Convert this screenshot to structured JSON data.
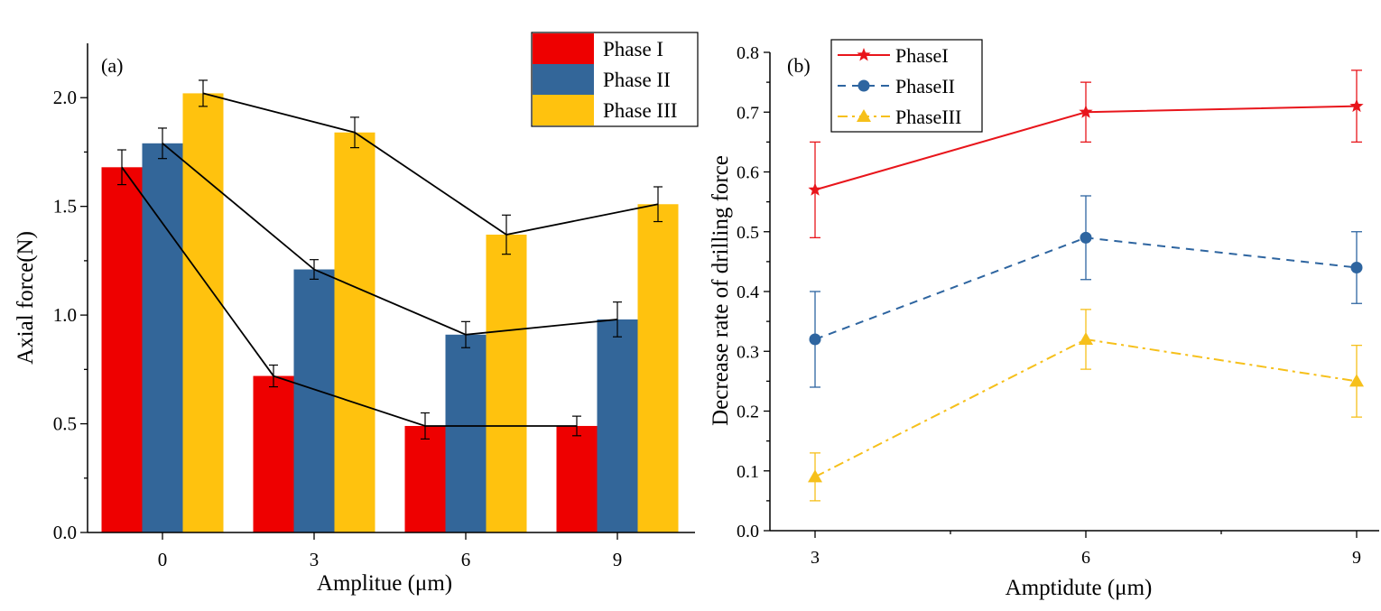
{
  "chart_data": [
    {
      "type": "bar",
      "panel_label": "(a)",
      "title": "",
      "xlabel": "Amplitue (μm)",
      "ylabel": "Axial force(N)",
      "categories": [
        "0",
        "3",
        "6",
        "9"
      ],
      "ylim": [
        0,
        2.25
      ],
      "yticks": [
        "0.0",
        "0.5",
        "1.0",
        "1.5",
        "2.0"
      ],
      "legend_position": "top-right",
      "series": [
        {
          "name": "Phase I",
          "color": "#ee0000",
          "values": [
            1.68,
            0.72,
            0.49,
            0.49
          ],
          "errors": [
            0.08,
            0.05,
            0.06,
            0.045
          ]
        },
        {
          "name": "Phase II",
          "color": "#336699",
          "values": [
            1.79,
            1.21,
            0.91,
            0.98
          ],
          "errors": [
            0.07,
            0.045,
            0.06,
            0.08
          ]
        },
        {
          "name": "Phase III",
          "color": "#ffc20e",
          "values": [
            2.02,
            1.84,
            1.37,
            1.51
          ],
          "errors": [
            0.06,
            0.07,
            0.09,
            0.08
          ]
        }
      ],
      "trend_lines": "connects each series' bar tops"
    },
    {
      "type": "line",
      "panel_label": "(b)",
      "title": "",
      "xlabel": "Amptidute (μm)",
      "ylabel": "Decrease rate of drilling force",
      "x": [
        3,
        6,
        9
      ],
      "xlim": [
        2.5,
        9.25
      ],
      "xticks": [
        "3",
        "6",
        "9"
      ],
      "ylim": [
        0,
        0.8
      ],
      "yticks": [
        "0.0",
        "0.1",
        "0.2",
        "0.3",
        "0.4",
        "0.5",
        "0.6",
        "0.7",
        "0.8"
      ],
      "legend_position": "top-left",
      "series": [
        {
          "name": "PhaseI",
          "color": "#e8151b",
          "marker": "star",
          "dash": "solid",
          "values": [
            0.57,
            0.7,
            0.71
          ],
          "errors": [
            0.08,
            0.05,
            0.06
          ]
        },
        {
          "name": "PhaseII",
          "color": "#2e65a0",
          "marker": "circle",
          "dash": "dashed",
          "values": [
            0.32,
            0.49,
            0.44
          ],
          "errors": [
            0.08,
            0.07,
            0.06
          ]
        },
        {
          "name": "PhaseIII",
          "color": "#f6c01b",
          "marker": "triangle",
          "dash": "dashdot",
          "values": [
            0.09,
            0.32,
            0.25
          ],
          "errors": [
            0.04,
            0.05,
            0.06
          ]
        }
      ]
    }
  ]
}
